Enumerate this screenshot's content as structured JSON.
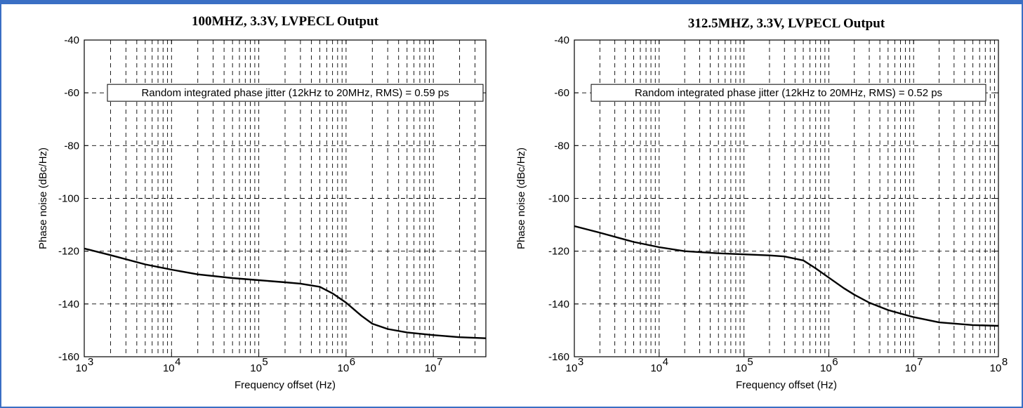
{
  "colors": {
    "frame": "#3a6fc4",
    "curve": "#000000",
    "grid": "#000000"
  },
  "chart_data": [
    {
      "type": "line",
      "title": "100MHZ, 3.3V, LVPECL Output",
      "xlabel": "Frequency offset (Hz)",
      "ylabel": "Phase noise (dBc/Hz)",
      "xscale": "log",
      "xlim": [
        1000,
        40000000
      ],
      "ylim": [
        -160,
        -40
      ],
      "xticks": [
        {
          "value": 1000,
          "base": "10",
          "exp": "3"
        },
        {
          "value": 10000,
          "base": "10",
          "exp": "4"
        },
        {
          "value": 100000,
          "base": "10",
          "exp": "5"
        },
        {
          "value": 1000000,
          "base": "10",
          "exp": "6"
        },
        {
          "value": 10000000,
          "base": "10",
          "exp": "7"
        }
      ],
      "yticks": [
        {
          "value": -40,
          "label": "-40"
        },
        {
          "value": -60,
          "label": "-60"
        },
        {
          "value": -80,
          "label": "-80"
        },
        {
          "value": -100,
          "label": "-100"
        },
        {
          "value": -120,
          "label": "-120"
        },
        {
          "value": -140,
          "label": "-140"
        },
        {
          "value": -160,
          "label": "-160"
        }
      ],
      "grid": true,
      "annotation": {
        "text": "Random integrated phase jitter (12kHz to 20MHz, RMS) = 0.59 ps",
        "y": -60
      },
      "series": [
        {
          "x": [
            1000,
            2000,
            5000,
            10000,
            20000,
            50000,
            100000,
            200000,
            300000,
            500000,
            700000,
            1000000,
            1500000,
            2000000,
            3000000,
            5000000,
            10000000,
            20000000,
            40000000
          ],
          "y": [
            -119,
            -121.5,
            -125,
            -127,
            -128.8,
            -130.2,
            -131,
            -131.8,
            -132.3,
            -133.5,
            -136,
            -139.5,
            -144.5,
            -147.5,
            -149.5,
            -150.8,
            -151.8,
            -152.6,
            -153
          ]
        }
      ]
    },
    {
      "type": "line",
      "title": "312.5MHZ, 3.3V, LVPECL Output",
      "xlabel": "Frequency offset (Hz)",
      "ylabel": "Phase noise (dBc/Hz)",
      "xscale": "log",
      "xlim": [
        1000,
        100000000
      ],
      "ylim": [
        -160,
        -40
      ],
      "xticks": [
        {
          "value": 1000,
          "base": "10",
          "exp": "3"
        },
        {
          "value": 10000,
          "base": "10",
          "exp": "4"
        },
        {
          "value": 100000,
          "base": "10",
          "exp": "5"
        },
        {
          "value": 1000000,
          "base": "10",
          "exp": "6"
        },
        {
          "value": 10000000,
          "base": "10",
          "exp": "7"
        },
        {
          "value": 100000000,
          "base": "10",
          "exp": "8"
        }
      ],
      "yticks": [
        {
          "value": -40,
          "label": "-40"
        },
        {
          "value": -60,
          "label": "-60"
        },
        {
          "value": -80,
          "label": "-80"
        },
        {
          "value": -100,
          "label": "-100"
        },
        {
          "value": -120,
          "label": "-120"
        },
        {
          "value": -140,
          "label": "-140"
        },
        {
          "value": -160,
          "label": "-160"
        }
      ],
      "grid": true,
      "annotation": {
        "text": "Random integrated phase jitter (12kHz to 20MHz, RMS) = 0.52 ps",
        "y": -60
      },
      "series": [
        {
          "x": [
            1000,
            2000,
            5000,
            10000,
            20000,
            50000,
            100000,
            200000,
            300000,
            500000,
            700000,
            1000000,
            1500000,
            2000000,
            3000000,
            5000000,
            10000000,
            20000000,
            50000000,
            100000000
          ],
          "y": [
            -110.5,
            -113,
            -116.5,
            -118.5,
            -120,
            -120.8,
            -121.2,
            -121.6,
            -122,
            -123.5,
            -126.5,
            -130,
            -134,
            -136.5,
            -139.5,
            -142.3,
            -145,
            -147,
            -148,
            -148.3
          ]
        }
      ]
    }
  ]
}
